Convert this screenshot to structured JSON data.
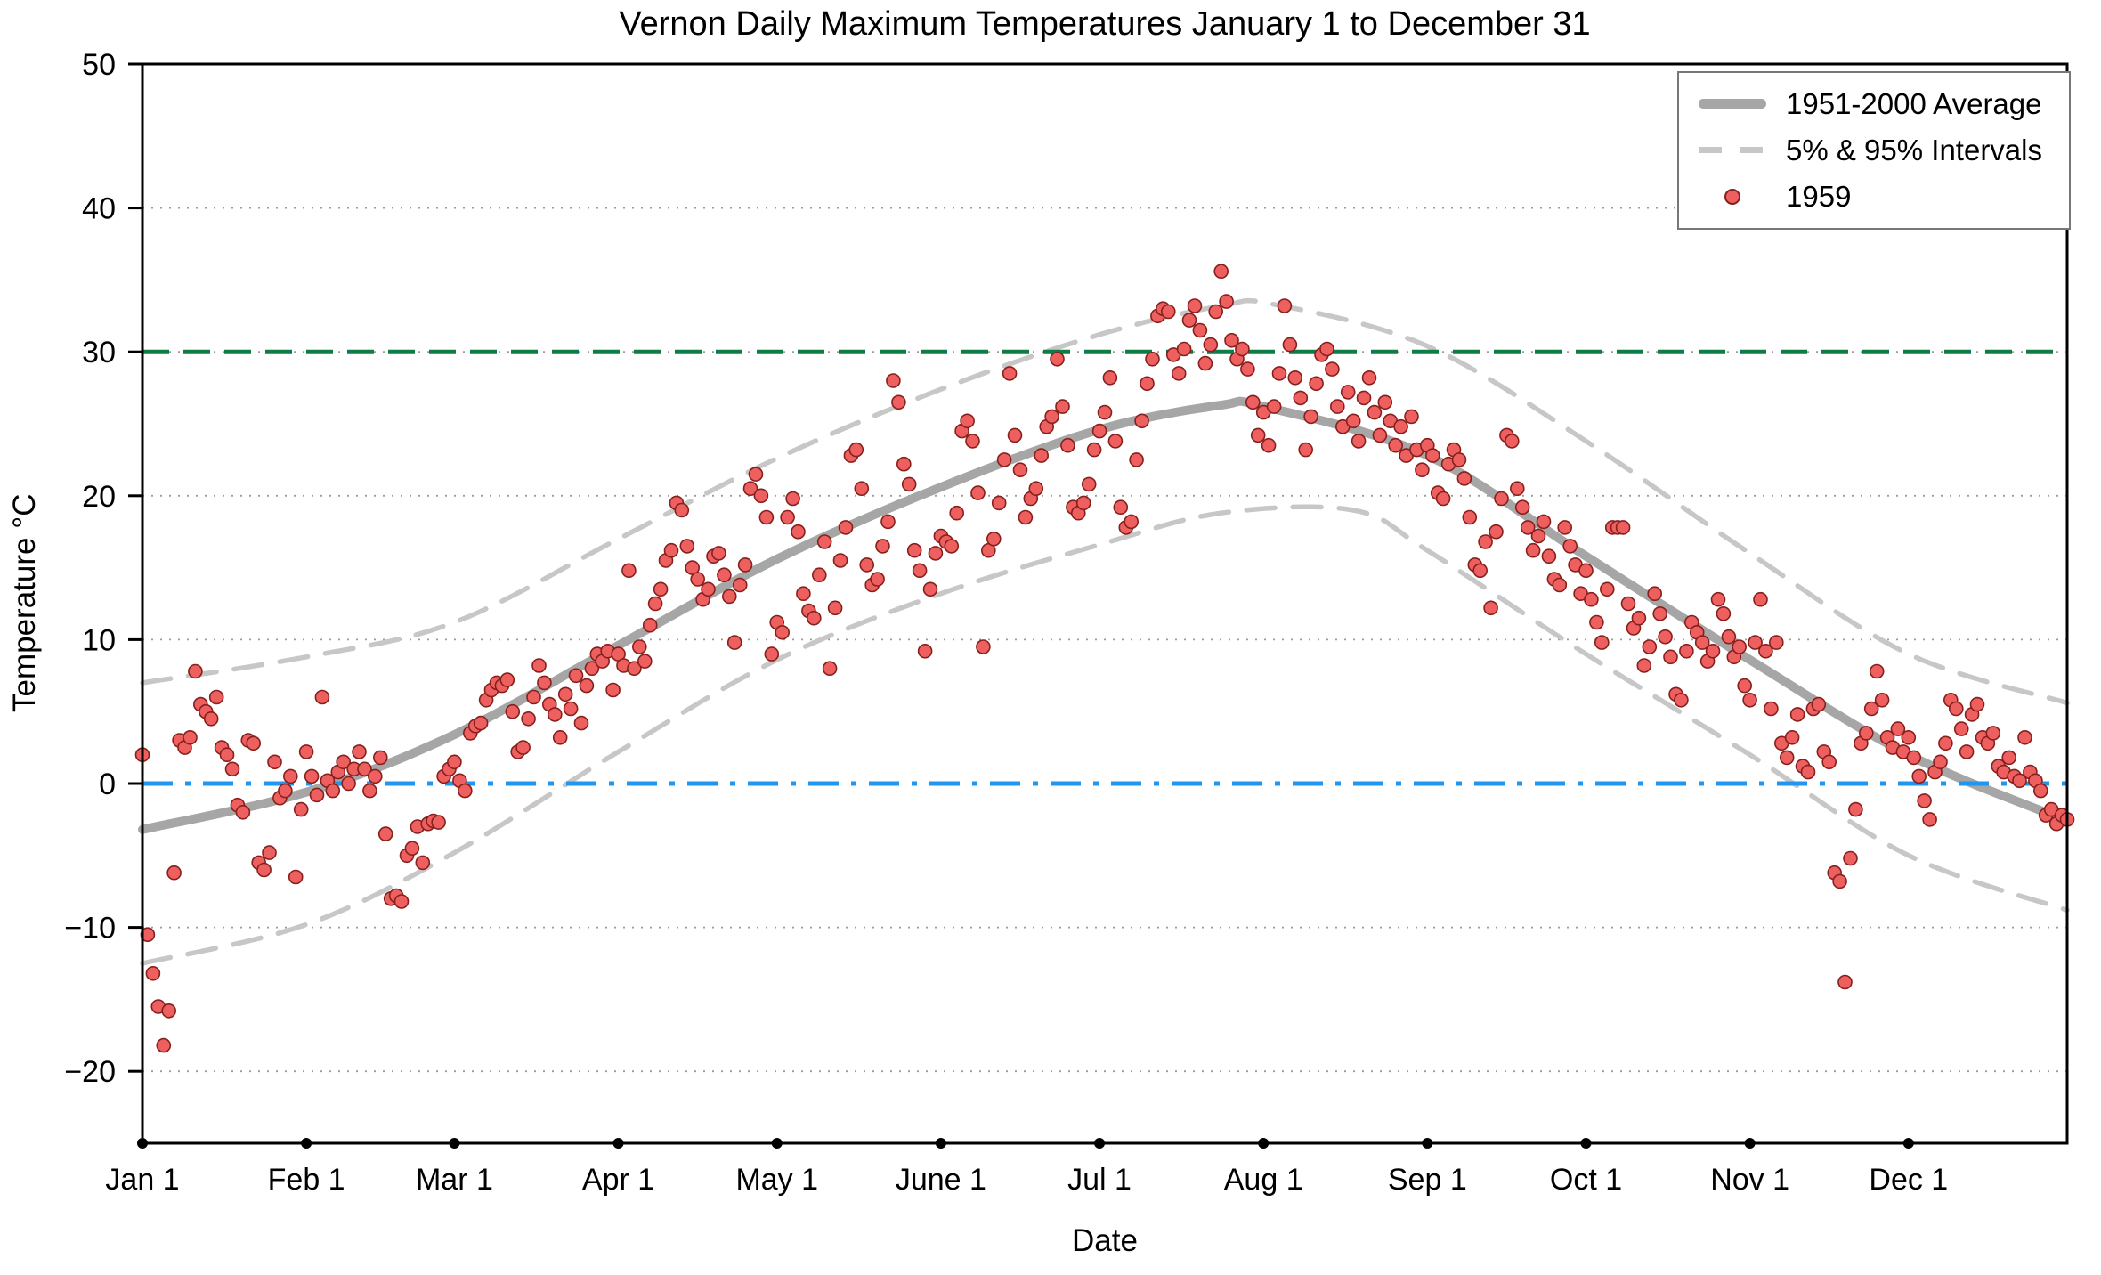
{
  "chart_data": {
    "type": "scatter",
    "title": "Vernon Daily Maximum Temperatures January 1 to December 31",
    "xlabel": "Date",
    "ylabel": "Temperature °C",
    "ylim": [
      -25,
      50
    ],
    "xlim_days": [
      1,
      365
    ],
    "grid": "dotted horizontal at 10-degree steps",
    "y_ticks": [
      50,
      40,
      30,
      20,
      10,
      0,
      -10,
      -20
    ],
    "grid_y": [
      40,
      30,
      20,
      10,
      -10,
      -20
    ],
    "x_ticks": [
      {
        "label": "Jan 1",
        "day": 1
      },
      {
        "label": "Feb 1",
        "day": 32
      },
      {
        "label": "Mar 1",
        "day": 60
      },
      {
        "label": "Apr 1",
        "day": 91
      },
      {
        "label": "May 1",
        "day": 121
      },
      {
        "label": "June 1",
        "day": 152
      },
      {
        "label": "Jul 1",
        "day": 182
      },
      {
        "label": "Aug 1",
        "day": 213
      },
      {
        "label": "Sep 1",
        "day": 244
      },
      {
        "label": "Oct 1",
        "day": 274
      },
      {
        "label": "Nov 1",
        "day": 305
      },
      {
        "label": "Dec 1",
        "day": 335
      }
    ],
    "legend": {
      "position": "top-right",
      "entries": [
        {
          "label": "1951-2000 Average",
          "type": "thick-line"
        },
        {
          "label": "5% & 95% Intervals",
          "type": "dashed-line"
        },
        {
          "label": "1959",
          "type": "point"
        }
      ]
    },
    "reference_lines": [
      {
        "value": 30,
        "style": "dashed",
        "color": "#0e7d44"
      },
      {
        "value": 0,
        "style": "dashdot",
        "color": "#1f97f2"
      }
    ],
    "colors": {
      "average": "#a6a6a6",
      "interval": "#c7c7c7",
      "points_fill": "#ee6060",
      "points_edge": "#86201c",
      "line_30": "#0e7d44",
      "line_0": "#1f97f2",
      "grid": "#9b9b9b",
      "axis": "#000000"
    },
    "series": {
      "average_1951_2000": {
        "anchors_day_value": [
          [
            1,
            -3.2
          ],
          [
            32,
            -0.6
          ],
          [
            60,
            3.4
          ],
          [
            91,
            9.6
          ],
          [
            121,
            15.6
          ],
          [
            152,
            20.6
          ],
          [
            182,
            24.6
          ],
          [
            205,
            26.3
          ],
          [
            213,
            26.2
          ],
          [
            244,
            22.8
          ],
          [
            274,
            15.8
          ],
          [
            305,
            8.6
          ],
          [
            335,
            2.0
          ],
          [
            365,
            -2.6
          ]
        ]
      },
      "p95_upper": {
        "anchors_day_value": [
          [
            1,
            7.0
          ],
          [
            32,
            8.8
          ],
          [
            60,
            11.2
          ],
          [
            91,
            17.0
          ],
          [
            121,
            22.6
          ],
          [
            152,
            27.4
          ],
          [
            182,
            31.2
          ],
          [
            205,
            33.2
          ],
          [
            215,
            33.3
          ],
          [
            244,
            30.4
          ],
          [
            274,
            23.8
          ],
          [
            305,
            16.0
          ],
          [
            335,
            9.0
          ],
          [
            365,
            5.6
          ]
        ]
      },
      "p5_lower": {
        "anchors_day_value": [
          [
            1,
            -12.5
          ],
          [
            32,
            -9.8
          ],
          [
            60,
            -4.8
          ],
          [
            91,
            2.2
          ],
          [
            121,
            8.6
          ],
          [
            152,
            13.2
          ],
          [
            182,
            16.6
          ],
          [
            205,
            18.8
          ],
          [
            230,
            19.0
          ],
          [
            244,
            16.2
          ],
          [
            274,
            9.0
          ],
          [
            305,
            2.0
          ],
          [
            335,
            -5.0
          ],
          [
            365,
            -8.8
          ]
        ]
      },
      "daily_max_1959": {
        "start_day": 1,
        "values": [
          2.0,
          -10.5,
          -13.2,
          -15.5,
          -18.2,
          -15.8,
          -6.2,
          3.0,
          2.5,
          3.2,
          7.8,
          5.5,
          5.0,
          4.5,
          6.0,
          2.5,
          2.0,
          1.0,
          -1.5,
          -2.0,
          3.0,
          2.8,
          -5.5,
          -6.0,
          -4.8,
          1.5,
          -1.0,
          -0.5,
          0.5,
          -6.5,
          -1.8,
          2.2,
          0.5,
          -0.8,
          6.0,
          0.2,
          -0.5,
          0.8,
          1.5,
          0.0,
          1.0,
          2.2,
          1.0,
          -0.5,
          0.5,
          1.8,
          -3.5,
          -8.0,
          -7.8,
          -8.2,
          -5.0,
          -4.5,
          -3.0,
          -5.5,
          -2.8,
          -2.6,
          -2.7,
          0.5,
          1.0,
          1.5,
          0.2,
          -0.5,
          3.5,
          4.0,
          4.2,
          5.8,
          6.5,
          7.0,
          6.8,
          7.2,
          5.0,
          2.2,
          2.5,
          4.5,
          6.0,
          8.2,
          7.0,
          5.5,
          4.8,
          3.2,
          6.2,
          5.2,
          7.5,
          4.2,
          6.8,
          8.0,
          9.0,
          8.5,
          9.2,
          6.5,
          9.0,
          8.2,
          14.8,
          8.0,
          9.5,
          8.5,
          11.0,
          12.5,
          13.5,
          15.5,
          16.2,
          19.5,
          19.0,
          16.5,
          15.0,
          14.2,
          12.8,
          13.5,
          15.8,
          16.0,
          14.5,
          13.0,
          9.8,
          13.8,
          15.2,
          20.5,
          21.5,
          20.0,
          18.5,
          9.0,
          11.2,
          10.5,
          18.5,
          19.8,
          17.5,
          13.2,
          12.0,
          11.5,
          14.5,
          16.8,
          8.0,
          12.2,
          15.5,
          17.8,
          22.8,
          23.2,
          20.5,
          15.2,
          13.8,
          14.2,
          16.5,
          18.2,
          28.0,
          26.5,
          22.2,
          20.8,
          16.2,
          14.8,
          9.2,
          13.5,
          16.0,
          17.2,
          16.8,
          16.5,
          18.8,
          24.5,
          25.2,
          23.8,
          20.2,
          9.5,
          16.2,
          17.0,
          19.5,
          22.5,
          28.5,
          24.2,
          21.8,
          18.5,
          19.8,
          20.5,
          22.8,
          24.8,
          25.5,
          29.5,
          26.2,
          23.5,
          19.2,
          18.8,
          19.5,
          20.8,
          23.2,
          24.5,
          25.8,
          28.2,
          23.8,
          19.2,
          17.8,
          18.2,
          22.5,
          25.2,
          27.8,
          29.5,
          32.5,
          33.0,
          32.8,
          29.8,
          28.5,
          30.2,
          32.2,
          33.2,
          31.5,
          29.2,
          30.5,
          32.8,
          35.6,
          33.5,
          30.8,
          29.5,
          30.2,
          28.8,
          26.5,
          24.2,
          25.8,
          23.5,
          26.2,
          28.5,
          33.2,
          30.5,
          28.2,
          26.8,
          23.2,
          25.5,
          27.8,
          29.8,
          30.2,
          28.8,
          26.2,
          24.8,
          27.2,
          25.2,
          23.8,
          26.8,
          28.2,
          25.8,
          24.2,
          26.5,
          25.2,
          23.5,
          24.8,
          22.8,
          25.5,
          23.2,
          21.8,
          23.5,
          22.8,
          20.2,
          19.8,
          22.2,
          23.2,
          22.5,
          21.2,
          18.5,
          15.2,
          14.8,
          16.8,
          12.2,
          17.5,
          19.8,
          24.2,
          23.8,
          20.5,
          19.2,
          17.8,
          16.2,
          17.2,
          18.2,
          15.8,
          14.2,
          13.8,
          17.8,
          16.5,
          15.2,
          13.2,
          14.8,
          12.8,
          11.2,
          9.8,
          13.5,
          17.8,
          17.8,
          17.8,
          12.5,
          10.8,
          11.5,
          8.2,
          9.5,
          13.2,
          11.8,
          10.2,
          8.8,
          6.2,
          5.8,
          9.2,
          11.2,
          10.5,
          9.8,
          8.5,
          9.2,
          12.8,
          11.8,
          10.2,
          8.8,
          9.5,
          6.8,
          5.8,
          9.8,
          12.8,
          9.2,
          5.2,
          9.8,
          2.8,
          1.8,
          3.2,
          4.8,
          1.2,
          0.8,
          5.2,
          5.5,
          2.2,
          1.5,
          -6.2,
          -6.8,
          -13.8,
          -5.2,
          -1.8,
          2.8,
          3.5,
          5.2,
          7.8,
          5.8,
          3.2,
          2.5,
          3.8,
          2.2,
          3.2,
          1.8,
          0.5,
          -1.2,
          -2.5,
          0.8,
          1.5,
          2.8,
          5.8,
          5.2,
          3.8,
          2.2,
          4.8,
          5.5,
          3.2,
          2.8,
          3.5,
          1.2,
          0.8,
          1.8,
          0.5,
          0.2,
          3.2,
          0.8,
          0.2,
          -0.5,
          -2.2,
          -1.8,
          -2.8,
          -2.2,
          -2.5
        ]
      }
    }
  }
}
